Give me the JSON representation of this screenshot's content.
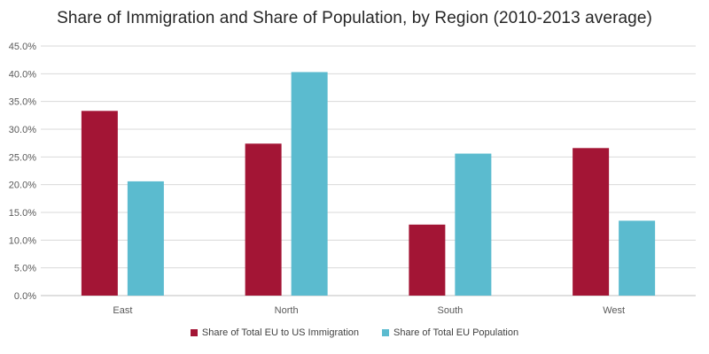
{
  "chart_data": {
    "type": "bar",
    "title": "Share of Immigration and Share of Population, by Region (2010-2013 average)",
    "xlabel": "",
    "ylabel": "",
    "categories": [
      "East",
      "North",
      "South",
      "West"
    ],
    "series": [
      {
        "name": "Share of Total EU to US Immigration",
        "color": "#A31535",
        "values": [
          33.3,
          27.4,
          12.8,
          26.6
        ]
      },
      {
        "name": "Share of Total EU Population",
        "color": "#5BBBCF",
        "values": [
          20.6,
          40.3,
          25.6,
          13.5
        ]
      }
    ],
    "ylim": [
      0,
      45
    ],
    "yticks": [
      0,
      5,
      10,
      15,
      20,
      25,
      30,
      35,
      40,
      45
    ],
    "ytick_labels": [
      "0.0%",
      "5.0%",
      "10.0%",
      "15.0%",
      "20.0%",
      "25.0%",
      "30.0%",
      "35.0%",
      "40.0%",
      "45.0%"
    ],
    "grid": true,
    "legend_position": "bottom"
  }
}
